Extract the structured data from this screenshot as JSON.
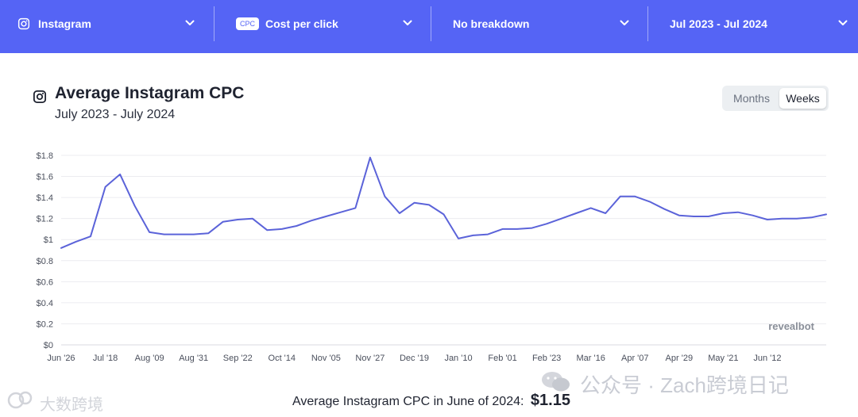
{
  "filters": {
    "platform": "Instagram",
    "metric_badge": "CPC",
    "metric": "Cost per click",
    "breakdown": "No breakdown",
    "date_range": "Jul 2023 - Jul 2024"
  },
  "header": {
    "title": "Average Instagram CPC",
    "subtitle": "July 2023 - July 2024"
  },
  "toggle": {
    "months": "Months",
    "weeks": "Weeks",
    "active": "Weeks"
  },
  "colors": {
    "accent": "#5564f5",
    "line": "#5b63d9",
    "grid": "#ececf0"
  },
  "chart_data": {
    "type": "line",
    "title": "Average Instagram CPC",
    "subtitle": "July 2023 - July 2024",
    "xlabel": "",
    "ylabel": "",
    "ylim": [
      0,
      1.8
    ],
    "yticks": [
      "$0",
      "$0.2",
      "$0.4",
      "$0.6",
      "$0.8",
      "$1",
      "$1.2",
      "$1.4",
      "$1.6",
      "$1.8"
    ],
    "xtick_labels": [
      "Jun '26",
      "Jul '18",
      "Aug '09",
      "Aug '31",
      "Sep '22",
      "Oct '14",
      "Nov '05",
      "Nov '27",
      "Dec '19",
      "Jan '10",
      "Feb '01",
      "Feb '23",
      "Mar '16",
      "Apr '07",
      "Apr '29",
      "May '21",
      "Jun '12"
    ],
    "grid": true,
    "watermark": "revealbot",
    "series": [
      {
        "values": [
          0.92,
          0.98,
          1.03,
          1.5,
          1.62,
          1.32,
          1.07,
          1.05,
          1.05,
          1.05,
          1.06,
          1.17,
          1.19,
          1.2,
          1.09,
          1.1,
          1.13,
          1.18,
          1.22,
          1.26,
          1.3,
          1.78,
          1.41,
          1.25,
          1.35,
          1.33,
          1.24,
          1.01,
          1.04,
          1.05,
          1.1,
          1.1,
          1.11,
          1.15,
          1.2,
          1.25,
          1.3,
          1.25,
          1.41,
          1.41,
          1.36,
          1.29,
          1.23,
          1.22,
          1.22,
          1.25,
          1.26,
          1.23,
          1.19,
          1.2,
          1.2,
          1.21,
          1.24
        ]
      }
    ]
  },
  "footer": {
    "text": "Average Instagram CPC in June of 2024:",
    "value": "$1.15"
  },
  "watermarks": {
    "wechat": "公众号 · Zach跨境日记",
    "brand": "大数跨境"
  }
}
